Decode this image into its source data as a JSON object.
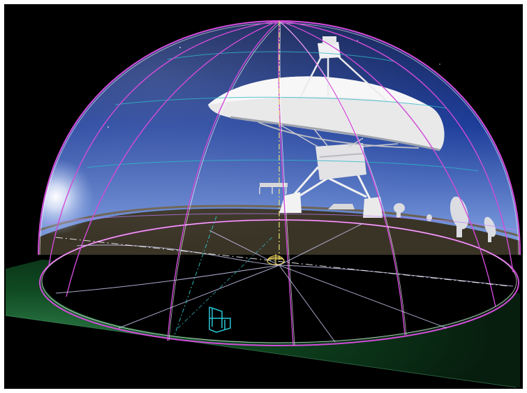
{
  "scene": {
    "subject": "radio-telescope-dome-projection",
    "colors": {
      "frame_background": "#000000",
      "sky_top": "#0b1a4e",
      "sky_mid": "#1d3d9a",
      "sky_horizon": "#6f8fd6",
      "ground_plane": "#0f4a22",
      "ground_plane_edge": "#46a36a",
      "dish": "#e9e9ea",
      "dish_shadow": "#9fa3ad",
      "grid_magenta": "#d24bd8",
      "grid_white": "#d8d8ff",
      "guide_yellow": "#e8e07a",
      "guide_cyan": "#33c9c9",
      "chair_cyan": "#29c7d6",
      "horizon_land": "#3a3427"
    },
    "icons": [
      "observer-icon",
      "chair-icon",
      "sun-icon"
    ]
  }
}
